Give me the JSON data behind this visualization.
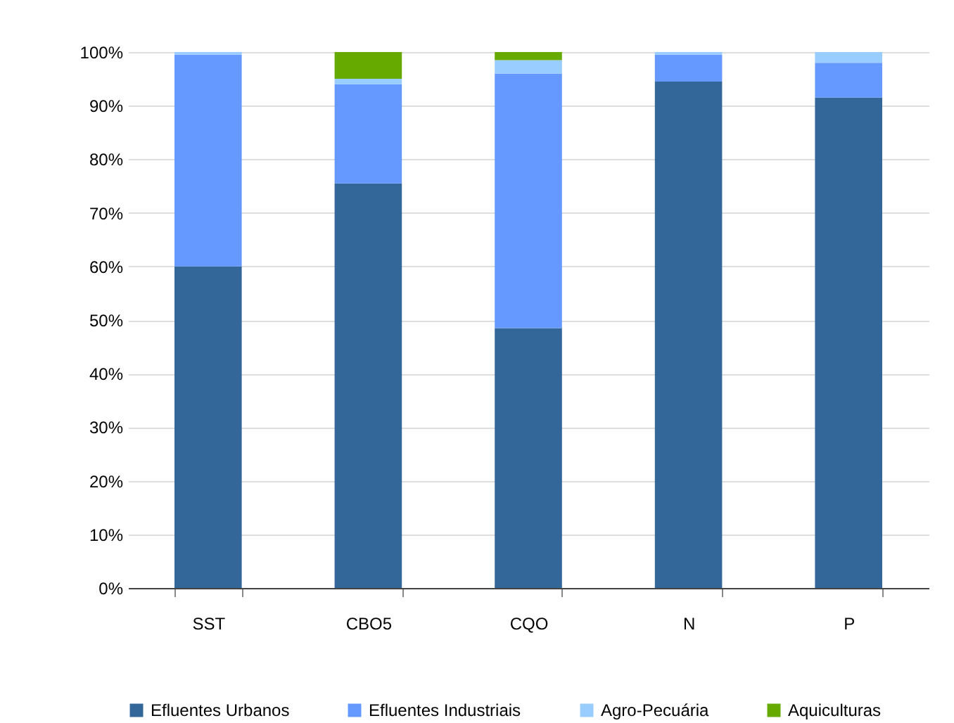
{
  "chart_data": {
    "type": "bar",
    "stacked": true,
    "categories": [
      "SST",
      "CBO5",
      "CQO",
      "N",
      "P"
    ],
    "series": [
      {
        "name": "Efluentes Urbanos",
        "color": "#336699",
        "values": [
          60,
          75.5,
          48.5,
          94.5,
          91.5
        ]
      },
      {
        "name": "Efluentes Industriais",
        "color": "#6699ff",
        "values": [
          39.5,
          18.5,
          47.5,
          5,
          6.5
        ]
      },
      {
        "name": "Agro-Pecuária",
        "color": "#99ccff",
        "values": [
          0.5,
          1,
          2.5,
          0.5,
          2
        ]
      },
      {
        "name": "Aquiculturas",
        "color": "#66aa00",
        "values": [
          0,
          5,
          1.5,
          0,
          0
        ]
      }
    ],
    "ylim": [
      0,
      100
    ],
    "yticks": [
      {
        "value": 0,
        "label": "0%"
      },
      {
        "value": 10,
        "label": "10%"
      },
      {
        "value": 20,
        "label": "20%"
      },
      {
        "value": 30,
        "label": "30%"
      },
      {
        "value": 40,
        "label": "40%"
      },
      {
        "value": 50,
        "label": "50%"
      },
      {
        "value": 60,
        "label": "60%"
      },
      {
        "value": 70,
        "label": "70%"
      },
      {
        "value": 80,
        "label": "80%"
      },
      {
        "value": 90,
        "label": "90%"
      },
      {
        "value": 100,
        "label": "100%"
      }
    ],
    "grid": "y",
    "legend": "bottom"
  }
}
